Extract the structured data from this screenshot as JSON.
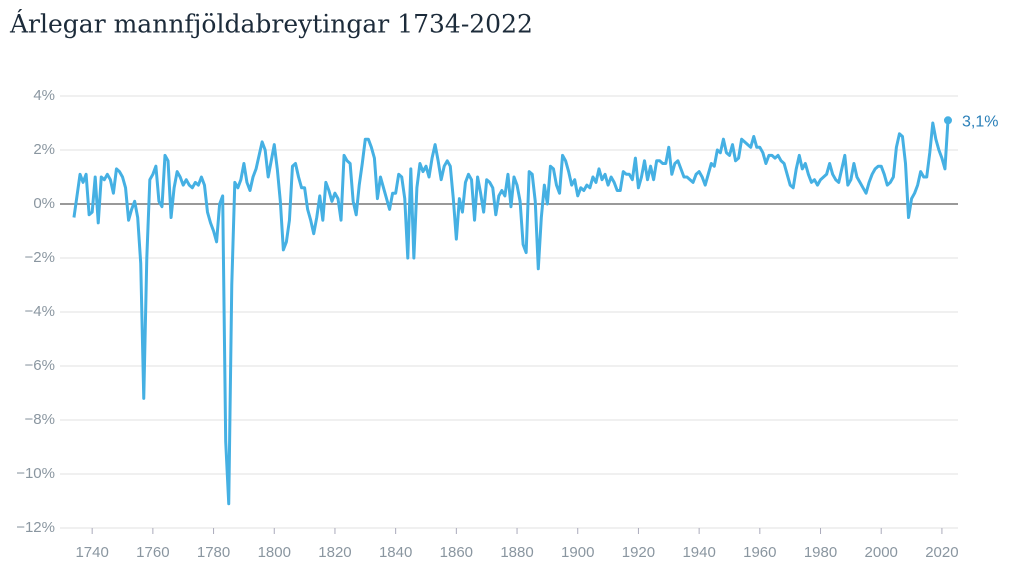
{
  "chart_data": {
    "type": "line",
    "title": "Árlegar mannfjöldabreytingar 1734-2022",
    "x": [
      1734,
      1735,
      1736,
      1737,
      1738,
      1739,
      1740,
      1741,
      1742,
      1743,
      1744,
      1745,
      1746,
      1747,
      1748,
      1749,
      1750,
      1751,
      1752,
      1753,
      1754,
      1755,
      1756,
      1757,
      1758,
      1759,
      1760,
      1761,
      1762,
      1763,
      1764,
      1765,
      1766,
      1767,
      1768,
      1769,
      1770,
      1771,
      1772,
      1773,
      1774,
      1775,
      1776,
      1777,
      1778,
      1779,
      1780,
      1781,
      1782,
      1783,
      1784,
      1785,
      1786,
      1787,
      1788,
      1789,
      1790,
      1791,
      1792,
      1793,
      1794,
      1795,
      1796,
      1797,
      1798,
      1799,
      1800,
      1801,
      1802,
      1803,
      1804,
      1805,
      1806,
      1807,
      1808,
      1809,
      1810,
      1811,
      1812,
      1813,
      1814,
      1815,
      1816,
      1817,
      1818,
      1819,
      1820,
      1821,
      1822,
      1823,
      1824,
      1825,
      1826,
      1827,
      1828,
      1829,
      1830,
      1831,
      1832,
      1833,
      1834,
      1835,
      1836,
      1837,
      1838,
      1839,
      1840,
      1841,
      1842,
      1843,
      1844,
      1845,
      1846,
      1847,
      1848,
      1849,
      1850,
      1851,
      1852,
      1853,
      1854,
      1855,
      1856,
      1857,
      1858,
      1859,
      1860,
      1861,
      1862,
      1863,
      1864,
      1865,
      1866,
      1867,
      1868,
      1869,
      1870,
      1871,
      1872,
      1873,
      1874,
      1875,
      1876,
      1877,
      1878,
      1879,
      1880,
      1881,
      1882,
      1883,
      1884,
      1885,
      1886,
      1887,
      1888,
      1889,
      1890,
      1891,
      1892,
      1893,
      1894,
      1895,
      1896,
      1897,
      1898,
      1899,
      1900,
      1901,
      1902,
      1903,
      1904,
      1905,
      1906,
      1907,
      1908,
      1909,
      1910,
      1911,
      1912,
      1913,
      1914,
      1915,
      1916,
      1917,
      1918,
      1919,
      1920,
      1921,
      1922,
      1923,
      1924,
      1925,
      1926,
      1927,
      1928,
      1929,
      1930,
      1931,
      1932,
      1933,
      1934,
      1935,
      1936,
      1937,
      1938,
      1939,
      1940,
      1941,
      1942,
      1943,
      1944,
      1945,
      1946,
      1947,
      1948,
      1949,
      1950,
      1951,
      1952,
      1953,
      1954,
      1955,
      1956,
      1957,
      1958,
      1959,
      1960,
      1961,
      1962,
      1963,
      1964,
      1965,
      1966,
      1967,
      1968,
      1969,
      1970,
      1971,
      1972,
      1973,
      1974,
      1975,
      1976,
      1977,
      1978,
      1979,
      1980,
      1981,
      1982,
      1983,
      1984,
      1985,
      1986,
      1987,
      1988,
      1989,
      1990,
      1991,
      1992,
      1993,
      1994,
      1995,
      1996,
      1997,
      1998,
      1999,
      2000,
      2001,
      2002,
      2003,
      2004,
      2005,
      2006,
      2007,
      2008,
      2009,
      2010,
      2011,
      2012,
      2013,
      2014,
      2015,
      2016,
      2017,
      2018,
      2019,
      2020,
      2021,
      2022
    ],
    "series": [
      {
        "color": "#45b0e3",
        "values": [
          -0.5,
          0.3,
          1.1,
          0.8,
          1.1,
          -0.4,
          -0.3,
          1.0,
          -0.7,
          1.0,
          0.9,
          1.1,
          0.9,
          0.4,
          1.3,
          1.2,
          1.0,
          0.6,
          -0.6,
          -0.2,
          0.1,
          -0.5,
          -2.2,
          -7.2,
          -2.0,
          0.9,
          1.1,
          1.4,
          0.1,
          -0.1,
          1.8,
          1.6,
          -0.5,
          0.6,
          1.2,
          1.0,
          0.7,
          0.9,
          0.7,
          0.6,
          0.8,
          0.7,
          1.0,
          0.7,
          -0.3,
          -0.7,
          -1.0,
          -1.4,
          0.0,
          0.3,
          -8.8,
          -11.1,
          -3.0,
          0.8,
          0.6,
          0.9,
          1.5,
          0.8,
          0.5,
          1.0,
          1.3,
          1.8,
          2.3,
          2.0,
          1.0,
          1.6,
          2.2,
          1.3,
          0.1,
          -1.7,
          -1.4,
          -0.6,
          1.4,
          1.5,
          1.0,
          0.6,
          0.6,
          -0.2,
          -0.6,
          -1.1,
          -0.5,
          0.3,
          -0.6,
          0.8,
          0.5,
          0.1,
          0.4,
          0.2,
          -0.6,
          1.8,
          1.6,
          1.5,
          0.1,
          -0.4,
          0.7,
          1.5,
          2.4,
          2.4,
          2.1,
          1.7,
          0.2,
          1.0,
          0.6,
          0.2,
          -0.2,
          0.4,
          0.4,
          1.1,
          1.0,
          0.2,
          -2.0,
          1.3,
          -2.0,
          0.6,
          1.5,
          1.2,
          1.4,
          1.0,
          1.7,
          2.2,
          1.6,
          0.9,
          1.4,
          1.6,
          1.4,
          0.2,
          -1.3,
          0.2,
          -0.3,
          0.8,
          1.1,
          0.9,
          -0.6,
          1.0,
          0.4,
          -0.3,
          0.9,
          0.8,
          0.6,
          -0.4,
          0.3,
          0.5,
          0.3,
          1.1,
          -0.1,
          1.0,
          0.7,
          0.1,
          -1.5,
          -1.8,
          1.2,
          1.1,
          0.1,
          -2.4,
          -0.5,
          0.7,
          0.0,
          1.4,
          1.3,
          0.7,
          0.4,
          1.8,
          1.6,
          1.2,
          0.7,
          0.9,
          0.3,
          0.6,
          0.5,
          0.7,
          0.6,
          1.0,
          0.8,
          1.3,
          0.9,
          1.1,
          0.7,
          1.0,
          0.8,
          0.5,
          0.5,
          1.2,
          1.1,
          1.1,
          0.9,
          1.7,
          0.6,
          1.0,
          1.6,
          0.9,
          1.4,
          0.9,
          1.6,
          1.6,
          1.5,
          1.5,
          2.1,
          1.1,
          1.5,
          1.6,
          1.3,
          1.0,
          1.0,
          0.9,
          0.8,
          1.1,
          1.2,
          1.0,
          0.7,
          1.1,
          1.5,
          1.4,
          2.0,
          1.9,
          2.4,
          1.9,
          1.8,
          2.2,
          1.6,
          1.7,
          2.4,
          2.3,
          2.2,
          2.1,
          2.5,
          2.1,
          2.1,
          1.9,
          1.5,
          1.8,
          1.8,
          1.7,
          1.8,
          1.6,
          1.5,
          1.1,
          0.7,
          0.6,
          1.3,
          1.8,
          1.3,
          1.5,
          1.1,
          0.8,
          0.9,
          0.7,
          0.9,
          1.0,
          1.1,
          1.5,
          1.1,
          0.9,
          0.8,
          1.3,
          1.8,
          0.7,
          0.9,
          1.5,
          1.0,
          0.8,
          0.6,
          0.4,
          0.8,
          1.1,
          1.3,
          1.4,
          1.4,
          1.1,
          0.7,
          0.8,
          1.0,
          2.1,
          2.6,
          2.5,
          1.5,
          -0.5,
          0.2,
          0.4,
          0.7,
          1.2,
          1.0,
          1.0,
          1.9,
          3.0,
          2.4,
          2.0,
          1.7,
          1.3,
          3.1
        ]
      }
    ],
    "annotations": [
      {
        "x": 2022,
        "value": 3.1,
        "label": "3,1%",
        "color": "#2a7fb8"
      }
    ],
    "xlim": [
      1729.4,
      2025.3
    ],
    "xticks": [
      1740,
      1760,
      1780,
      1800,
      1820,
      1840,
      1860,
      1880,
      1900,
      1920,
      1940,
      1960,
      1980,
      2000,
      2020
    ],
    "ylim": [
      -12,
      4
    ],
    "yticks": [
      {
        "value": -12,
        "label": "−12%"
      },
      {
        "value": -10,
        "label": "−10%"
      },
      {
        "value": -8,
        "label": "−8%"
      },
      {
        "value": -6,
        "label": "−6%"
      },
      {
        "value": -4,
        "label": "−4%"
      },
      {
        "value": -2,
        "label": "−2%"
      },
      {
        "value": 0,
        "label": "0%"
      },
      {
        "value": 2,
        "label": "2%"
      },
      {
        "value": 4,
        "label": "4%"
      }
    ],
    "grid": true
  }
}
